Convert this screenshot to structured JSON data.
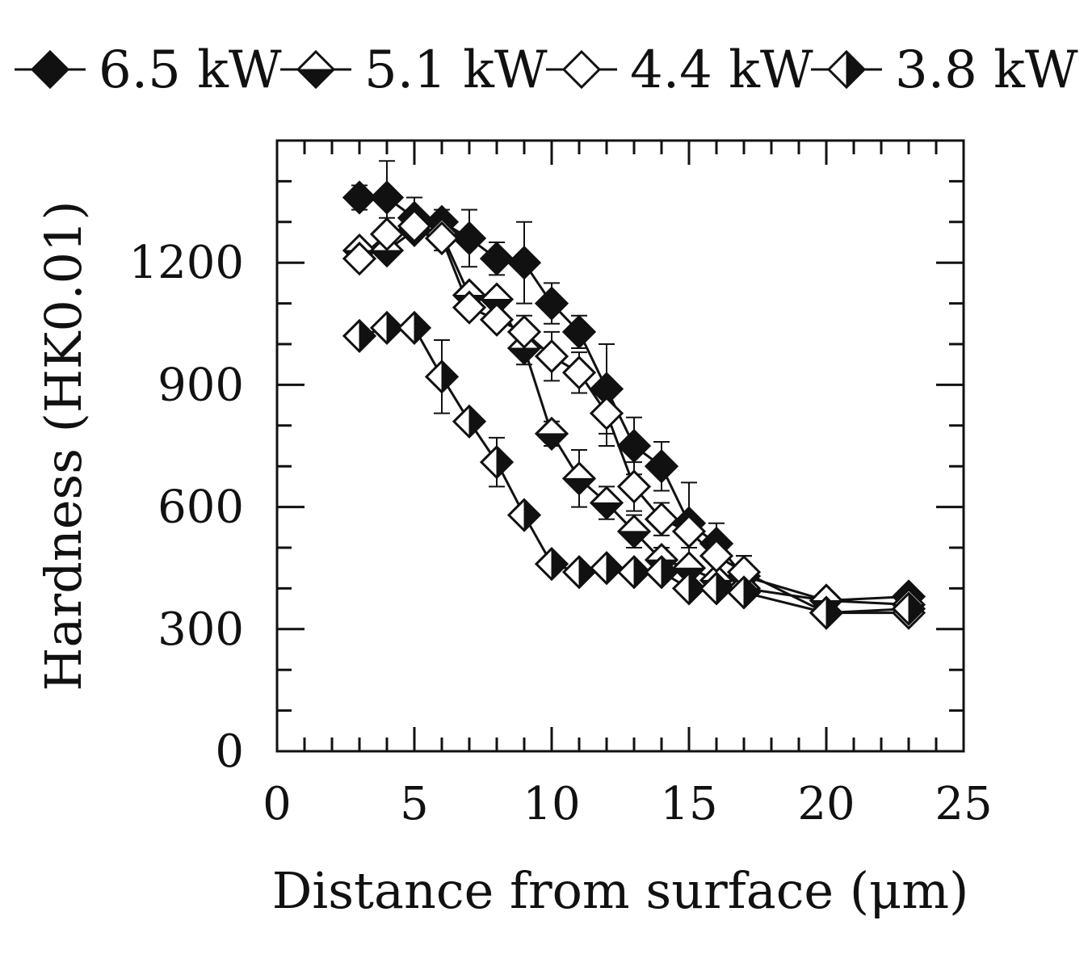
{
  "chart_data": {
    "type": "line",
    "title": "",
    "xlabel": "Distance from surface (μm)",
    "ylabel": "Hardness (HK0.01)",
    "xlim": [
      0,
      25
    ],
    "ylim": [
      0,
      1500
    ],
    "xticks": [
      "0",
      "5",
      "10",
      "15",
      "20",
      "25"
    ],
    "xtick_values": [
      0,
      5,
      10,
      15,
      20,
      25
    ],
    "yticks": [
      "0",
      "300",
      "600",
      "900",
      "1200"
    ],
    "ytick_values": [
      0,
      300,
      600,
      900,
      1200
    ],
    "legend_position": "top",
    "series": [
      {
        "name": "6.5 kW",
        "marker": "filled",
        "x": [
          3,
          4,
          5,
          6,
          7,
          8,
          9,
          10,
          11,
          12,
          13,
          14,
          15,
          16,
          17,
          20,
          23
        ],
        "y": [
          1360,
          1360,
          1310,
          1300,
          1260,
          1210,
          1200,
          1100,
          1030,
          890,
          750,
          700,
          560,
          510,
          430,
          370,
          380
        ],
        "err": [
          30,
          90,
          50,
          30,
          70,
          40,
          100,
          50,
          40,
          110,
          70,
          60,
          100,
          50,
          50,
          0,
          0
        ]
      },
      {
        "name": "5.1 kW",
        "marker": "bottom-half",
        "x": [
          3,
          4,
          5,
          6,
          7,
          8,
          9,
          10,
          11,
          12,
          13,
          14,
          15,
          16,
          17,
          20,
          23
        ],
        "y": [
          1230,
          1230,
          1280,
          1270,
          1120,
          1110,
          990,
          780,
          670,
          610,
          540,
          470,
          450,
          420,
          400,
          370,
          360
        ],
        "err": [
          0,
          0,
          0,
          0,
          0,
          0,
          40,
          30,
          70,
          40,
          40,
          30,
          0,
          0,
          0,
          0,
          0
        ]
      },
      {
        "name": "4.4 kW",
        "marker": "open",
        "x": [
          3,
          4,
          5,
          6,
          7,
          8,
          9,
          10,
          11,
          12,
          13,
          14,
          15,
          16,
          17,
          20,
          23
        ],
        "y": [
          1210,
          1270,
          1290,
          1260,
          1090,
          1060,
          1030,
          970,
          930,
          830,
          650,
          570,
          540,
          480,
          440,
          340,
          340
        ],
        "err": [
          0,
          40,
          30,
          30,
          0,
          0,
          40,
          60,
          50,
          80,
          60,
          40,
          40,
          40,
          40,
          0,
          0
        ]
      },
      {
        "name": "3.8 kW",
        "marker": "right-half",
        "x": [
          3,
          4,
          5,
          6,
          7,
          8,
          9,
          10,
          11,
          12,
          13,
          14,
          15,
          16,
          17,
          20,
          23
        ],
        "y": [
          1020,
          1040,
          1040,
          920,
          810,
          710,
          580,
          460,
          440,
          450,
          440,
          440,
          400,
          400,
          390,
          340,
          350
        ],
        "err": [
          0,
          0,
          0,
          90,
          0,
          60,
          0,
          0,
          0,
          0,
          0,
          0,
          0,
          0,
          0,
          0,
          0
        ]
      }
    ]
  }
}
